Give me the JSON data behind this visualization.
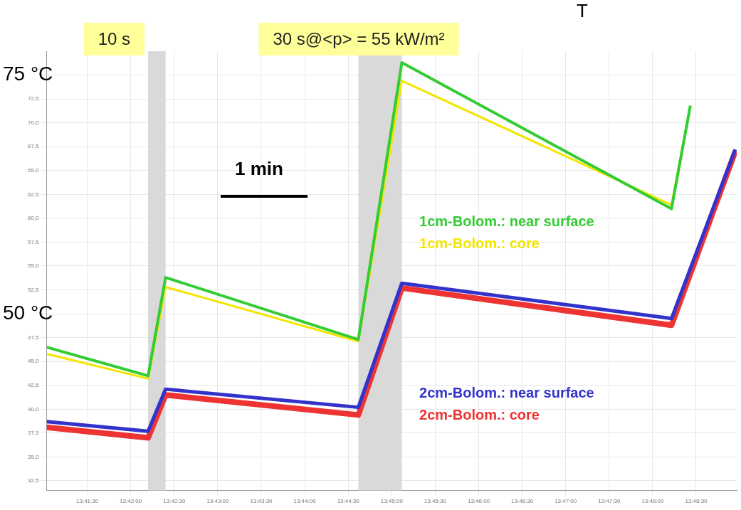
{
  "chart_data": {
    "type": "line",
    "x": [
      13.68389,
      13.70333,
      13.70667,
      13.74361,
      13.75194,
      13.80361,
      13.80722
    ],
    "xlim": [
      13.68389,
      13.81611
    ],
    "xticks": [
      {
        "value": 13.69167,
        "label": "13:41:30"
      },
      {
        "value": 13.7,
        "label": "13:42:00"
      },
      {
        "value": 13.70833,
        "label": "13:42:30"
      },
      {
        "value": 13.71667,
        "label": "13:43:00"
      },
      {
        "value": 13.725,
        "label": "13:43:30"
      },
      {
        "value": 13.73333,
        "label": "13:44:00"
      },
      {
        "value": 13.74167,
        "label": "13:44:30"
      },
      {
        "value": 13.75,
        "label": "13:45:00"
      },
      {
        "value": 13.75833,
        "label": "13:45:30"
      },
      {
        "value": 13.76667,
        "label": "13:46:00"
      },
      {
        "value": 13.775,
        "label": "13:46:30"
      },
      {
        "value": 13.78333,
        "label": "13:47:00"
      },
      {
        "value": 13.79167,
        "label": "13:47:30"
      },
      {
        "value": 13.8,
        "label": "13:48:00"
      },
      {
        "value": 13.80833,
        "label": "13:48:30"
      }
    ],
    "ylim": [
      31.5,
      77.5
    ],
    "yticks": [
      {
        "value": 32.5,
        "label": "32,5"
      },
      {
        "value": 35,
        "label": "35,0"
      },
      {
        "value": 37.5,
        "label": "37,5"
      },
      {
        "value": 40,
        "label": "40,0"
      },
      {
        "value": 42.5,
        "label": "42,5"
      },
      {
        "value": 45,
        "label": "45,0"
      },
      {
        "value": 47.5,
        "label": "47,5"
      },
      {
        "value": 50,
        "label": null
      },
      {
        "value": 52.5,
        "label": "52,5"
      },
      {
        "value": 55,
        "label": "55,0"
      },
      {
        "value": 57.5,
        "label": "57,5"
      },
      {
        "value": 60,
        "label": "60,0"
      },
      {
        "value": 62.5,
        "label": "62,5"
      },
      {
        "value": 65,
        "label": "65,0"
      },
      {
        "value": 67.5,
        "label": "67,5"
      },
      {
        "value": 70,
        "label": "70,0"
      },
      {
        "value": 72.5,
        "label": "72,5"
      },
      {
        "value": 75,
        "label": null
      }
    ],
    "grid": true,
    "marker": "none",
    "series": [
      {
        "name": "1cm-Bolom.: near surface",
        "color": "#33cc33",
        "values": [
          46.5,
          43.5,
          53.8,
          47.3,
          76.3,
          61.0,
          71.8
        ]
      },
      {
        "name": "1cm-Bolom.: core",
        "color": "#f2e600",
        "values": [
          45.8,
          43.2,
          52.8,
          47.1,
          74.4,
          61.4,
          71.8
        ]
      },
      {
        "name": "2cm-Bolom.: near surface",
        "color": "#3333cc",
        "x": [
          13.68389,
          13.70333,
          13.70667,
          13.74361,
          13.75194,
          13.80361,
          13.81583
        ],
        "values": [
          38.7,
          37.7,
          42.1,
          40.2,
          53.2,
          49.5,
          67.2
        ]
      },
      {
        "name": "2cm-Bolom.: core",
        "color": "#ee3333",
        "x": [
          13.68389,
          13.70333,
          13.70667,
          13.74361,
          13.75194,
          13.80361,
          13.81583
        ],
        "values": [
          38.1,
          37.0,
          41.5,
          39.4,
          52.7,
          48.8,
          67.0
        ]
      }
    ],
    "bands": [
      {
        "axis": "x",
        "from": 13.70333,
        "to": 13.70667,
        "label": "10 s",
        "color": "#d9d9d9"
      },
      {
        "axis": "x",
        "from": 13.74361,
        "to": 13.75194,
        "label": "30 s@<p> = 55 kW/m²",
        "color": "#d9d9d9"
      }
    ],
    "annotations": [
      "T",
      "1 min",
      "75 °C",
      "50 °C"
    ]
  }
}
